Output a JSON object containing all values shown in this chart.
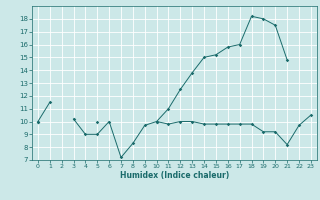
{
  "xlabel": "Humidex (Indice chaleur)",
  "bg_color": "#cce8e8",
  "line_color": "#1a6b6b",
  "grid_color": "#ffffff",
  "x_values": [
    0,
    1,
    2,
    3,
    4,
    5,
    6,
    7,
    8,
    9,
    10,
    11,
    12,
    13,
    14,
    15,
    16,
    17,
    18,
    19,
    20,
    21,
    22,
    23
  ],
  "line_high": [
    10.0,
    11.5,
    null,
    null,
    null,
    10.0,
    null,
    null,
    null,
    null,
    10.0,
    11.0,
    12.5,
    13.8,
    15.0,
    15.2,
    15.8,
    16.0,
    18.2,
    18.0,
    17.5,
    14.8,
    null,
    null
  ],
  "line_low": [
    10.0,
    null,
    null,
    10.2,
    9.0,
    9.0,
    10.0,
    7.2,
    8.3,
    9.7,
    10.0,
    9.8,
    10.0,
    10.0,
    9.8,
    9.8,
    9.8,
    9.8,
    9.8,
    9.2,
    9.2,
    8.2,
    9.7,
    10.5
  ],
  "ylim": [
    7,
    19
  ],
  "xlim": [
    -0.5,
    23.5
  ],
  "yticks": [
    7,
    8,
    9,
    10,
    11,
    12,
    13,
    14,
    15,
    16,
    17,
    18
  ],
  "xticks": [
    0,
    1,
    2,
    3,
    4,
    5,
    6,
    7,
    8,
    9,
    10,
    11,
    12,
    13,
    14,
    15,
    16,
    17,
    18,
    19,
    20,
    21,
    22,
    23
  ]
}
